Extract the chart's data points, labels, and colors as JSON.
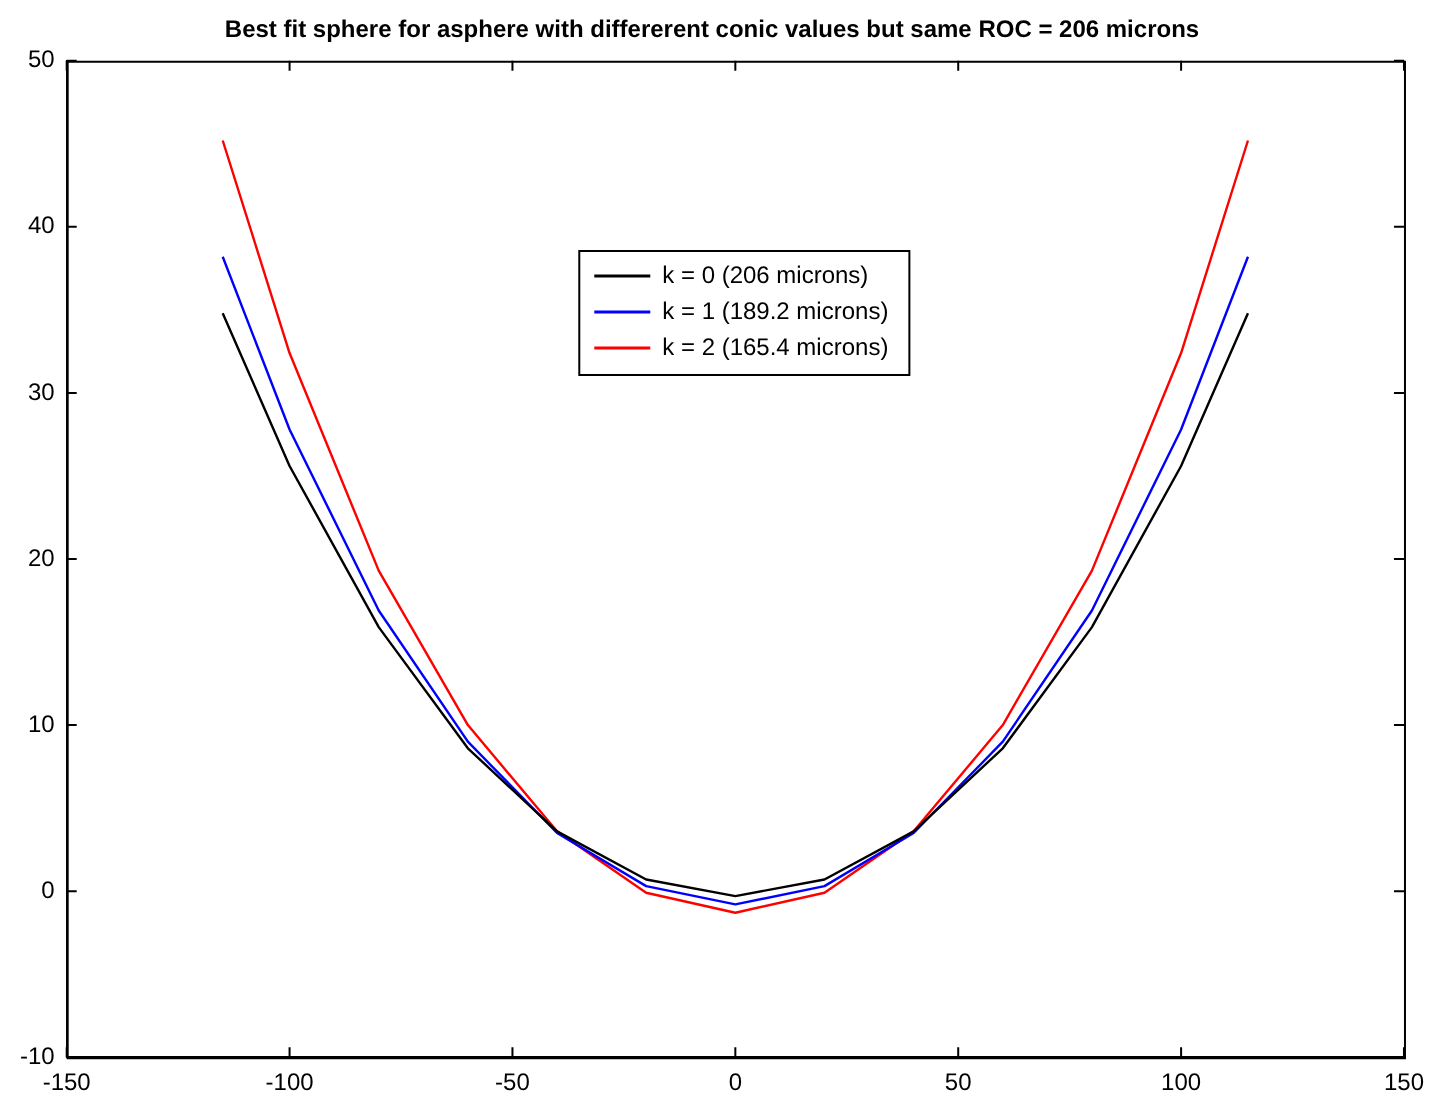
{
  "chart_data": {
    "type": "line",
    "title": "Best fit sphere for asphere with differerent conic values but same ROC = 206 microns",
    "x": [
      -115,
      -100,
      -80,
      -60,
      -40,
      -20,
      0,
      20,
      40,
      60,
      80,
      100,
      115
    ],
    "series": [
      {
        "name": "k = 0 (206 microns)",
        "color": "#000000",
        "values": [
          34.8,
          25.6,
          15.9,
          8.6,
          3.6,
          0.7,
          -0.3,
          0.7,
          3.6,
          8.6,
          15.9,
          25.6,
          34.8
        ]
      },
      {
        "name": "k = 1 (189.2 microns)",
        "color": "#0000ff",
        "values": [
          38.2,
          27.8,
          16.9,
          9.0,
          3.5,
          0.3,
          -0.8,
          0.3,
          3.5,
          9.0,
          16.9,
          27.8,
          38.2
        ]
      },
      {
        "name": "k = 2 (165.4 microns)",
        "color": "#ff0000",
        "values": [
          45.2,
          32.4,
          19.3,
          10.0,
          3.6,
          -0.1,
          -1.3,
          -0.1,
          3.6,
          10.0,
          19.3,
          32.4,
          45.2
        ]
      }
    ],
    "xlim": [
      -150,
      150
    ],
    "xticks": [
      -150,
      -100,
      -50,
      0,
      50,
      100,
      150
    ],
    "ylim": [
      -10,
      50
    ],
    "yticks": [
      -10,
      0,
      10,
      20,
      30,
      40,
      50
    ],
    "grid": false,
    "legend": "top",
    "marker": "none",
    "line_style": "solid"
  }
}
